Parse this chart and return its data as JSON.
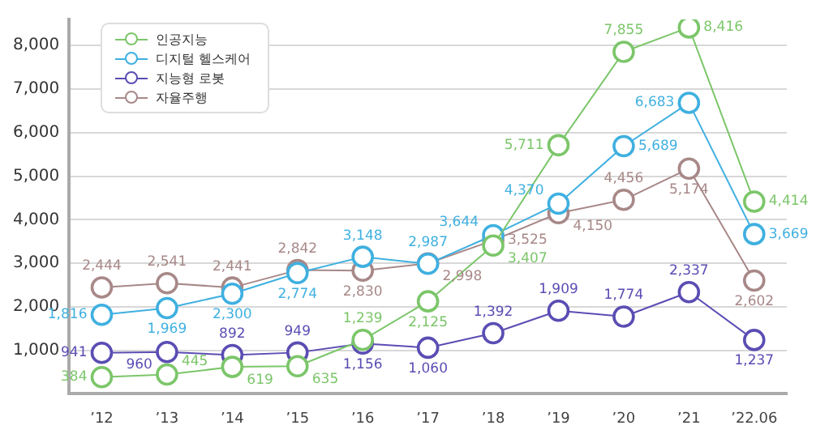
{
  "chart_data": {
    "type": "line",
    "categories": [
      "’12",
      "’13",
      "’14",
      "’15",
      "’16",
      "’17",
      "’18",
      "’19",
      "’20",
      "’21",
      "’22.06"
    ],
    "series": [
      {
        "name": "인공지능",
        "color": "#7cc66a",
        "values": [
          384,
          445,
          619,
          635,
          1239,
          2125,
          3407,
          5711,
          7855,
          8416,
          4414
        ],
        "value_labels": [
          "384",
          "445",
          "619",
          "635",
          "1,239",
          "2,125",
          "3,407",
          "5,711",
          "7,855",
          "8,416",
          "4,414"
        ]
      },
      {
        "name": "디지털 헬스케어",
        "color": "#3fb0e0",
        "values": [
          1816,
          1969,
          2300,
          2774,
          3148,
          2987,
          3644,
          4370,
          5689,
          6683,
          3669
        ],
        "value_labels": [
          "1,816",
          "1,969",
          "2,300",
          "2,774",
          "3,148",
          "2,987",
          "3,644",
          "4,370",
          "5,689",
          "6,683",
          "3,669"
        ]
      },
      {
        "name": "지능형 로봇",
        "color": "#5a4db3",
        "values": [
          941,
          960,
          892,
          949,
          1156,
          1060,
          1392,
          1909,
          1774,
          2337,
          1237
        ],
        "value_labels": [
          "941",
          "960",
          "892",
          "949",
          "1,156",
          "1,060",
          "1,392",
          "1,909",
          "1,774",
          "2,337",
          "1,237"
        ]
      },
      {
        "name": "자율주행",
        "color": "#a88888",
        "values": [
          2444,
          2541,
          2441,
          2842,
          2830,
          2998,
          3525,
          4150,
          4456,
          5174,
          2602
        ],
        "value_labels": [
          "2,444",
          "2,541",
          "2,441",
          "2,842",
          "2,830",
          "2,998",
          "3,525",
          "4,150",
          "4,456",
          "5,174",
          "2,602"
        ]
      }
    ],
    "ylim": [
      0,
      8600
    ],
    "yticks": [
      {
        "value": 0,
        "label": null
      },
      {
        "value": 1000,
        "label": "1,000"
      },
      {
        "value": 2000,
        "label": "2,000"
      },
      {
        "value": 3000,
        "label": "3,000"
      },
      {
        "value": 4000,
        "label": "4,000"
      },
      {
        "value": 5000,
        "label": "5,000"
      },
      {
        "value": 6000,
        "label": "6,000"
      },
      {
        "value": 7000,
        "label": "7,000"
      },
      {
        "value": 8000,
        "label": "8,000"
      }
    ],
    "grid": "y",
    "legend": "top left",
    "marker": "circle",
    "line_style": "solid"
  }
}
